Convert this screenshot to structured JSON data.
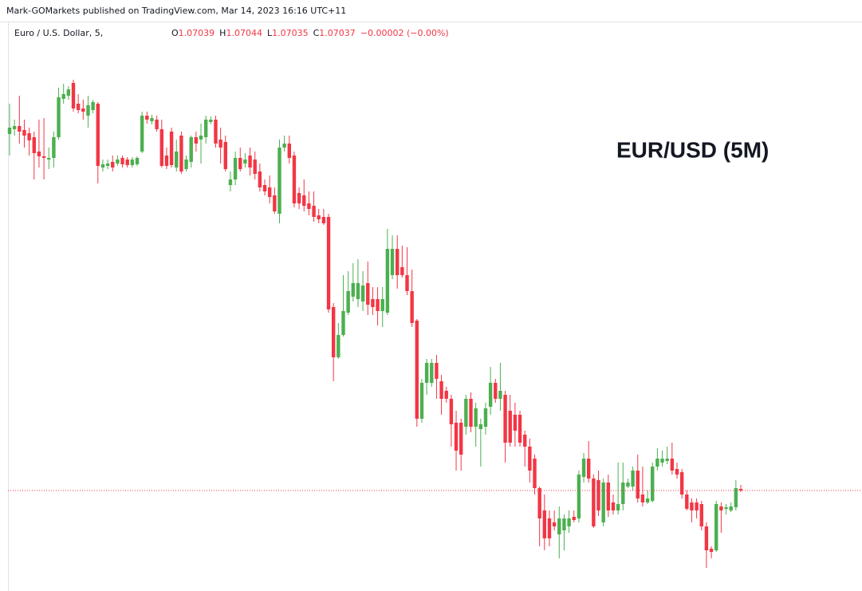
{
  "header": {
    "text": "Mark-GOMarkets published on TradingView.com, Mar 14, 2023 16:16 UTC+11"
  },
  "chart_data": {
    "type": "candlestick",
    "title": "EUR/USD (5M)",
    "symbol": "Euro / U.S. Dollar, 5,",
    "ohlc_legend": {
      "o": "O",
      "open": 1.07039,
      "h": "H",
      "high": 1.07044,
      "l": "L",
      "low": 1.07035,
      "c": "C",
      "close": 1.07037,
      "change": "−0.00002 (−0.00%)"
    },
    "up_color": "#4caf50",
    "down_color": "#f23645",
    "last_price_line": true,
    "ylim": [
      1.06911,
      1.07625
    ],
    "open": [
      1.07484,
      1.0749,
      1.07494,
      1.07489,
      1.07485,
      1.0748,
      1.07462,
      1.07456,
      1.07452,
      1.07454,
      1.0748,
      1.07528,
      1.07532,
      1.07548,
      1.07522,
      1.07516,
      1.07507,
      1.07514,
      1.07522,
      1.07442,
      1.07444,
      1.07449,
      1.07447,
      1.07454,
      1.07452,
      1.07445,
      1.07446,
      1.07462,
      1.07507,
      1.075,
      1.07502,
      1.0749,
      1.07457,
      1.07487,
      1.07442,
      1.07482,
      1.0744,
      1.07449,
      1.0748,
      1.07477,
      1.0748,
      1.07499,
      1.07502,
      1.07477,
      1.07474,
      1.0742,
      1.07427,
      1.07454,
      1.07447,
      1.07457,
      1.07452,
      1.07437,
      1.0742,
      1.07417,
      1.07407,
      1.07384,
      1.07467,
      1.07472,
      1.07457,
      1.0741,
      1.07407,
      1.07397,
      1.07394,
      1.07382,
      1.0738,
      1.0738,
      1.07267,
      1.07204,
      1.07232,
      1.0726,
      1.0728,
      1.07277,
      1.07274,
      1.07297,
      1.07277,
      1.07277,
      1.07262,
      1.0726,
      1.07307,
      1.0734,
      1.07317,
      1.07307,
      1.07287,
      1.0725,
      1.07127,
      1.07172,
      1.07172,
      1.07197,
      1.07174,
      1.07162,
      1.07152,
      1.07122,
      1.07122,
      1.07117,
      1.07152,
      1.07117,
      1.07114,
      1.07117,
      1.07142,
      1.07172,
      1.07152,
      1.07157,
      1.07137,
      1.07132,
      1.07132,
      1.07107,
      1.07092,
      1.07077,
      1.0704,
      1.07012,
      1.07002,
      1.06997,
      1.06982,
      1.06987,
      1.06992,
      1.07004,
      1.07002,
      1.07054,
      1.07077,
      1.07052,
      1.0705,
      1.06997,
      1.07047,
      1.07022,
      1.07012,
      1.0702,
      1.07042,
      1.07042,
      1.07062,
      1.07032,
      1.07022,
      1.07024,
      1.07067,
      1.07072,
      1.07074,
      1.07077,
      1.07064,
      1.0706,
      1.07032,
      1.07022,
      1.07022,
      1.0702,
      1.06992,
      1.06964,
      1.06962,
      1.07017,
      1.07014,
      1.07012,
      1.07016,
      1.07039
    ],
    "high": [
      1.07522,
      1.07502,
      1.07532,
      1.07502,
      1.07492,
      1.07487,
      1.07502,
      1.07504,
      1.07467,
      1.07487,
      1.07542,
      1.07547,
      1.07544,
      1.07552,
      1.07534,
      1.07527,
      1.07532,
      1.07527,
      1.07524,
      1.07452,
      1.07452,
      1.07457,
      1.07457,
      1.07457,
      1.07455,
      1.07455,
      1.07456,
      1.07512,
      1.07512,
      1.07508,
      1.07507,
      1.07502,
      1.07467,
      1.07492,
      1.07477,
      1.07487,
      1.07457,
      1.07482,
      1.07487,
      1.07497,
      1.07507,
      1.07506,
      1.07507,
      1.07492,
      1.07482,
      1.07437,
      1.07462,
      1.07467,
      1.0746,
      1.07467,
      1.07462,
      1.07447,
      1.07427,
      1.07432,
      1.07417,
      1.07477,
      1.07482,
      1.07482,
      1.07462,
      1.07417,
      1.07427,
      1.07412,
      1.07412,
      1.0739,
      1.0739,
      1.07384,
      1.07272,
      1.07247,
      1.07307,
      1.07312,
      1.07322,
      1.07327,
      1.07312,
      1.07324,
      1.07292,
      1.07292,
      1.07292,
      1.07365,
      1.07357,
      1.07357,
      1.07344,
      1.07342,
      1.07314,
      1.07252,
      1.07177,
      1.07202,
      1.07202,
      1.07207,
      1.07182,
      1.07167,
      1.07157,
      1.07137,
      1.07127,
      1.07157,
      1.0716,
      1.07147,
      1.07127,
      1.07147,
      1.07192,
      1.07177,
      1.07197,
      1.07162,
      1.07157,
      1.07147,
      1.07137,
      1.07112,
      1.07102,
      1.07082,
      1.07042,
      1.07032,
      1.07012,
      1.07012,
      1.07017,
      1.07007,
      1.07012,
      1.07012,
      1.07062,
      1.07084,
      1.07099,
      1.07057,
      1.07062,
      1.07052,
      1.07057,
      1.07032,
      1.07072,
      1.07072,
      1.07052,
      1.07067,
      1.07082,
      1.07067,
      1.07037,
      1.07072,
      1.0709,
      1.07087,
      1.07092,
      1.07097,
      1.07072,
      1.07064,
      1.07037,
      1.07027,
      1.07027,
      1.07024,
      1.06997,
      1.06967,
      1.07024,
      1.07022,
      1.0702,
      1.07022,
      1.0705,
      1.07044
    ],
    "low": [
      1.07457,
      1.07482,
      1.07472,
      1.07467,
      1.07457,
      1.07427,
      1.07442,
      1.07427,
      1.0744,
      1.07442,
      1.07477,
      1.07522,
      1.07527,
      1.07512,
      1.0751,
      1.07502,
      1.07492,
      1.0751,
      1.07422,
      1.07437,
      1.0744,
      1.07437,
      1.07444,
      1.07442,
      1.07442,
      1.07442,
      1.07444,
      1.0746,
      1.07497,
      1.07496,
      1.07487,
      1.07442,
      1.0744,
      1.07442,
      1.07437,
      1.07434,
      1.07437,
      1.07442,
      1.07462,
      1.07447,
      1.07472,
      1.07496,
      1.07467,
      1.07447,
      1.07437,
      1.07412,
      1.0742,
      1.07437,
      1.07442,
      1.07432,
      1.07427,
      1.07412,
      1.07407,
      1.07397,
      1.07384,
      1.07372,
      1.07462,
      1.07447,
      1.07392,
      1.0739,
      1.07387,
      1.07382,
      1.07374,
      1.07372,
      1.0737,
      1.0726,
      1.07174,
      1.07202,
      1.0723,
      1.07257,
      1.07274,
      1.07267,
      1.07262,
      1.07257,
      1.07257,
      1.07244,
      1.07242,
      1.07257,
      1.07302,
      1.0729,
      1.07304,
      1.07282,
      1.07242,
      1.07117,
      1.07122,
      1.07157,
      1.07167,
      1.07152,
      1.07132,
      1.07147,
      1.07092,
      1.07062,
      1.07062,
      1.07107,
      1.0711,
      1.07092,
      1.07067,
      1.07107,
      1.07132,
      1.07147,
      1.07137,
      1.07072,
      1.07092,
      1.07092,
      1.07092,
      1.07067,
      1.07047,
      1.07032,
      1.06967,
      1.06962,
      1.06967,
      1.06987,
      1.06952,
      1.06962,
      1.06984,
      1.06997,
      1.06997,
      1.07047,
      1.07047,
      1.0699,
      1.07005,
      1.06992,
      1.07004,
      1.07007,
      1.07007,
      1.07012,
      1.0704,
      1.07037,
      1.07022,
      1.07017,
      1.0702,
      1.07022,
      1.07062,
      1.07067,
      1.0707,
      1.07057,
      1.07052,
      1.07027,
      1.07012,
      1.06997,
      1.07002,
      1.06987,
      1.0694,
      1.06952,
      1.0696,
      1.06984,
      1.07007,
      1.0701,
      1.07012,
      1.07035
    ],
    "close": [
      1.07492,
      1.07494,
      1.07487,
      1.07482,
      1.07476,
      1.0746,
      1.07456,
      1.07454,
      1.07454,
      1.0748,
      1.0753,
      1.07534,
      1.0754,
      1.07516,
      1.07514,
      1.07512,
      1.0752,
      1.07524,
      1.07444,
      1.07446,
      1.07447,
      1.07442,
      1.07452,
      1.07446,
      1.07445,
      1.07452,
      1.07454,
      1.07507,
      1.07502,
      1.07504,
      1.0749,
      1.07444,
      1.07444,
      1.07445,
      1.07462,
      1.07437,
      1.07452,
      1.0748,
      1.07472,
      1.07482,
      1.07502,
      1.07502,
      1.07472,
      1.07467,
      1.0744,
      1.07427,
      1.07454,
      1.0744,
      1.07452,
      1.07442,
      1.07434,
      1.07417,
      1.07412,
      1.07405,
      1.07387,
      1.07467,
      1.07472,
      1.07454,
      1.07397,
      1.07397,
      1.07394,
      1.0739,
      1.0738,
      1.07377,
      1.07372,
      1.07264,
      1.07204,
      1.07232,
      1.07262,
      1.07287,
      1.07297,
      1.07297,
      1.07294,
      1.0727,
      1.07267,
      1.07262,
      1.07277,
      1.0734,
      1.0734,
      1.07307,
      1.07307,
      1.07287,
      1.07247,
      1.07127,
      1.07172,
      1.07197,
      1.07197,
      1.07177,
      1.07152,
      1.07152,
      1.0712,
      1.07087,
      1.07082,
      1.07152,
      1.07117,
      1.0714,
      1.0712,
      1.0714,
      1.07172,
      1.07152,
      1.07162,
      1.07097,
      1.07097,
      1.07112,
      1.07097,
      1.07092,
      1.07062,
      1.0704,
      1.07002,
      1.06977,
      1.06977,
      1.06992,
      1.07002,
      1.07002,
      1.07002,
      1.07,
      1.07057,
      1.07077,
      1.07052,
      1.06992,
      1.07012,
      1.07047,
      1.07012,
      1.07012,
      1.0702,
      1.07047,
      1.07047,
      1.07062,
      1.07027,
      1.07022,
      1.07027,
      1.07067,
      1.07077,
      1.07077,
      1.07077,
      1.07062,
      1.07057,
      1.07032,
      1.07014,
      1.07012,
      1.07012,
      1.06992,
      1.06962,
      1.0696,
      1.0702,
      1.07012,
      1.07016,
      1.07017,
      1.0704,
      1.07037
    ]
  }
}
